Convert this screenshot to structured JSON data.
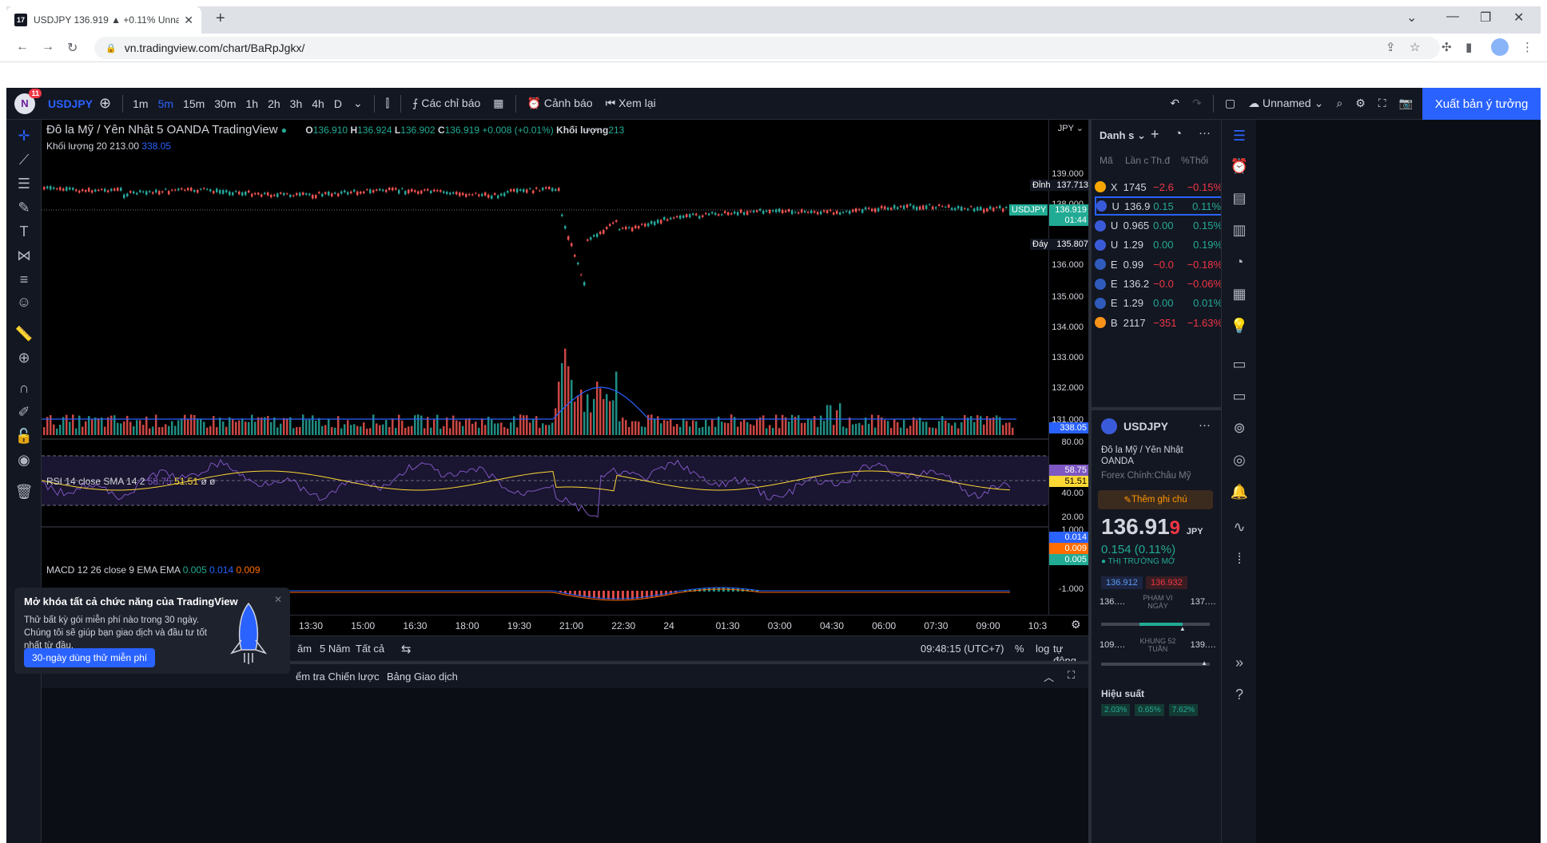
{
  "browser": {
    "tab_title": "USDJPY 136.919 ▲ +0.11% Unna",
    "favicon": "17",
    "url": "vn.tradingview.com/chart/BaRpJgkx/"
  },
  "topbar": {
    "avatar_letter": "N",
    "avatar_badge": "11",
    "symbol": "USDJPY",
    "intervals": [
      "1m",
      "5m",
      "15m",
      "30m",
      "1h",
      "2h",
      "3h",
      "4h",
      "D"
    ],
    "active_interval": "5m",
    "indicators": "Các chỉ báo",
    "alerts": "Cảnh báo",
    "replay": "Xem lại",
    "layout_name": "Unnamed",
    "publish": "Xuất bản ý tưởng"
  },
  "legend": {
    "name": "Đô la Mỹ / Yên Nhật",
    "interval": "5",
    "broker": "OANDA",
    "source": "TradingView",
    "o_label": "O",
    "o": "136.910",
    "h_label": "H",
    "h": "136.924",
    "l_label": "L",
    "l": "136.902",
    "c_label": "C",
    "c": "136.919",
    "change": "+0.008 (+0.01%)",
    "vol_label": "Khối lượng",
    "vol": "213",
    "vol20_label": "Khối lượng 20",
    "vol20_a": "213.00",
    "vol20_b": "338.05"
  },
  "rsi": {
    "label": "RSI 14 close SMA 14 2",
    "v1": "58.75",
    "v2": "51.51",
    "na": "ø ø"
  },
  "macd": {
    "label": "MACD 12 26 close 9 EMA EMA",
    "v1": "0.005",
    "v2": "0.014",
    "v3": "0.009"
  },
  "price_axis": {
    "currency": "JPY",
    "ticks": [
      "139.000",
      "138.000",
      "136.000",
      "135.000",
      "134.000",
      "133.000",
      "132.000",
      "131.000"
    ],
    "high_label": "Đỉnh",
    "high": "137.713",
    "sym_label": "USDJPY",
    "last": "136.919",
    "countdown": "01:44",
    "low_label": "Đáy",
    "low": "135.807",
    "vol_ma": "338.05",
    "vol_axis": "80.00",
    "rsi_ticks": [
      "40.00",
      "20.00"
    ],
    "rsi_v1": "58.75",
    "rsi_v2": "51.51",
    "macd_top": "1.000",
    "macd_bottom": "-1.000",
    "macd_v1": "0.014",
    "macd_v2": "0.009",
    "macd_v3": "0.005"
  },
  "time_axis": [
    "13:30",
    "15:00",
    "16:30",
    "18:00",
    "19:30",
    "21:00",
    "22:30",
    "24",
    "01:30",
    "03:00",
    "04:30",
    "06:00",
    "07:30",
    "09:00",
    "10:3"
  ],
  "bottom": {
    "ranges": [
      "ăm",
      "5 Năm",
      "Tất cả"
    ],
    "clock": "09:48:15 (UTC+7)",
    "pct": "%",
    "log": "log",
    "auto": "tự động",
    "tab1": "ểm tra Chiến lược",
    "tab2": "Bảng Giao dịch"
  },
  "promo": {
    "title": "Mở khóa tất cả chức năng của TradingView",
    "body": "Thử bất kỳ gói miễn phí nào trong 30 ngày. Chúng tôi sẽ giúp bạn giao dịch và đầu tư tốt nhất từ đầu.",
    "button": "30-ngày dùng thử miễn phí"
  },
  "watchlist": {
    "title": "Danh s",
    "columns": [
      "Mã",
      "Lần c",
      "Th.đ",
      "%Thổi"
    ],
    "rows": [
      {
        "s": "X",
        "p": "1745",
        "c": "−2.6",
        "pc": "−0.15%",
        "dir": "down",
        "color": "#f7a600"
      },
      {
        "s": "U",
        "p": "136.9",
        "c": "0.15",
        "pc": "0.11%",
        "dir": "up",
        "color": "#3a5bd9"
      },
      {
        "s": "U",
        "p": "0.965",
        "c": "0.00",
        "pc": "0.15%",
        "dir": "up",
        "color": "#3a5bd9"
      },
      {
        "s": "U",
        "p": "1.29",
        "c": "0.00",
        "pc": "0.19%",
        "dir": "up",
        "color": "#3a5bd9"
      },
      {
        "s": "E",
        "p": "0.99",
        "c": "−0.0",
        "pc": "−0.18%",
        "dir": "down",
        "color": "#2f5bbd"
      },
      {
        "s": "E",
        "p": "136.2",
        "c": "−0.0",
        "pc": "−0.06%",
        "dir": "down",
        "color": "#2f5bbd"
      },
      {
        "s": "E",
        "p": "1.29",
        "c": "0.00",
        "pc": "0.01%",
        "dir": "up",
        "color": "#2f5bbd"
      },
      {
        "s": "B",
        "p": "2117",
        "c": "−351",
        "pc": "−1.63%",
        "dir": "down",
        "color": "#f7931a"
      }
    ],
    "detail": {
      "symbol": "USDJPY",
      "name": "Đô la Mỹ / Yên Nhật",
      "broker": "OANDA",
      "category": "Forex Chính:Châu Mỹ",
      "note_btn": "Thêm ghi chú",
      "price": "136.91",
      "price_sup": "9",
      "ccy": "JPY",
      "change": "0.154 (0.11%)",
      "market": "● THỊ TRƯỜNG MỞ",
      "bid": "136.912",
      "ask": "136.932",
      "day_low": "136.…",
      "day_label": "PHẠM VI NGÀY",
      "day_high": "137.…",
      "w52_low": "109.…",
      "w52_label": "KHUNG 52 TUẦN",
      "w52_high": "139.…",
      "perf": "Hiệu suất",
      "perf_vals": [
        "2.03%",
        "0.65%",
        "7.62%"
      ]
    }
  }
}
